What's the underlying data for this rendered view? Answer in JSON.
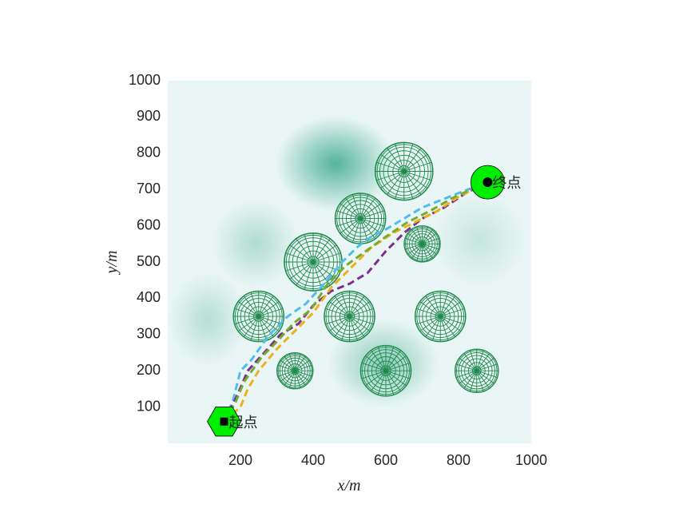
{
  "chart_data": {
    "type": "path",
    "xlabel": "x/m",
    "ylabel": "y/m",
    "xlim": [
      0,
      1000
    ],
    "ylim": [
      0,
      1000
    ],
    "xticks": [
      200,
      400,
      600,
      800,
      1000
    ],
    "yticks": [
      100,
      200,
      300,
      400,
      500,
      600,
      700,
      800,
      900,
      1000
    ],
    "obstacle_color": "#1f8a4c",
    "obstacles": [
      {
        "x": 650,
        "y": 750,
        "r": 80
      },
      {
        "x": 530,
        "y": 620,
        "r": 70
      },
      {
        "x": 700,
        "y": 550,
        "r": 50
      },
      {
        "x": 400,
        "y": 500,
        "r": 80
      },
      {
        "x": 250,
        "y": 350,
        "r": 70
      },
      {
        "x": 500,
        "y": 350,
        "r": 70
      },
      {
        "x": 750,
        "y": 350,
        "r": 70
      },
      {
        "x": 350,
        "y": 200,
        "r": 50
      },
      {
        "x": 600,
        "y": 200,
        "r": 70
      },
      {
        "x": 850,
        "y": 200,
        "r": 60
      }
    ],
    "start": {
      "x": 155,
      "y": 60,
      "label": "起点"
    },
    "end": {
      "x": 880,
      "y": 720,
      "label": "终点"
    },
    "marker_color": "#00ee00",
    "series": [
      {
        "color": "#4dbeee",
        "x": [
          155,
          180,
          200,
          230,
          280,
          330,
          380,
          430,
          480,
          520,
          560,
          600,
          650,
          700,
          750,
          800,
          880
        ],
        "y": [
          60,
          120,
          200,
          230,
          300,
          350,
          385,
          440,
          500,
          540,
          570,
          590,
          620,
          650,
          670,
          690,
          720
        ]
      },
      {
        "color": "#7e2f8e",
        "x": [
          155,
          190,
          220,
          270,
          310,
          360,
          400,
          450,
          500,
          550,
          600,
          650,
          700,
          760,
          820,
          880
        ],
        "y": [
          60,
          130,
          200,
          255,
          300,
          330,
          380,
          420,
          440,
          470,
          530,
          580,
          620,
          650,
          690,
          720
        ]
      },
      {
        "color": "#edb120",
        "x": [
          155,
          200,
          220,
          250,
          300,
          350,
          400,
          450,
          500,
          560,
          620,
          680,
          740,
          800,
          880
        ],
        "y": [
          60,
          100,
          150,
          200,
          260,
          310,
          360,
          430,
          480,
          540,
          580,
          610,
          640,
          680,
          720
        ]
      },
      {
        "color": "#77ac30",
        "x": [
          155,
          185,
          210,
          260,
          300,
          345,
          395,
          440,
          490,
          545,
          600,
          660,
          720,
          790,
          880
        ],
        "y": [
          60,
          110,
          170,
          240,
          280,
          330,
          370,
          440,
          490,
          530,
          570,
          610,
          640,
          680,
          720
        ]
      }
    ]
  }
}
